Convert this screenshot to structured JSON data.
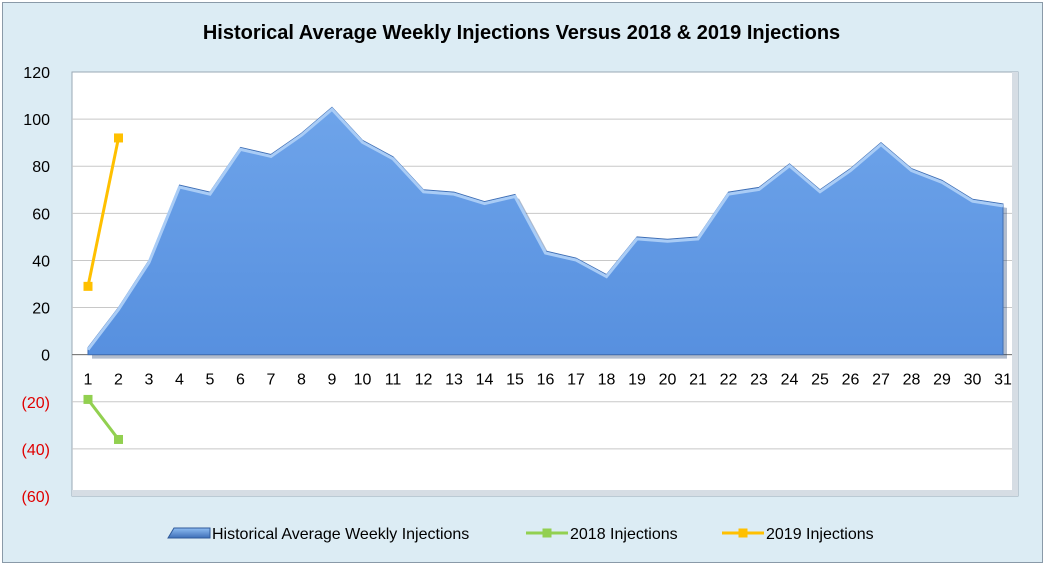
{
  "chart_data": {
    "type": "area",
    "title": "Historical Average Weekly Injections Versus 2018 & 2019 Injections",
    "xlabel": "",
    "ylabel": "",
    "x": [
      1,
      2,
      3,
      4,
      5,
      6,
      7,
      8,
      9,
      10,
      11,
      12,
      13,
      14,
      15,
      16,
      17,
      18,
      19,
      20,
      21,
      22,
      23,
      24,
      25,
      26,
      27,
      28,
      29,
      30,
      31
    ],
    "ylim": [
      -60,
      120
    ],
    "yticks": [
      120,
      100,
      80,
      60,
      40,
      20,
      0,
      -20,
      -40,
      -60
    ],
    "ytick_labels": [
      "120",
      "100",
      "80",
      "60",
      "40",
      "20",
      "0",
      "(20)",
      "(40)",
      "(60)"
    ],
    "negative_tick_color": "#e00000",
    "grid": true,
    "legend_position": "bottom",
    "series": [
      {
        "name": "Historical Average Weekly Injections",
        "kind": "area",
        "color": "#5b95e0",
        "x": [
          1,
          2,
          3,
          4,
          5,
          6,
          7,
          8,
          9,
          10,
          11,
          12,
          13,
          14,
          15,
          16,
          17,
          18,
          19,
          20,
          21,
          22,
          23,
          24,
          25,
          26,
          27,
          28,
          29,
          30,
          31
        ],
        "values": [
          3,
          20,
          40,
          72,
          69,
          88,
          85,
          94,
          105,
          91,
          84,
          70,
          69,
          65,
          68,
          44,
          41,
          34,
          50,
          49,
          50,
          69,
          71,
          81,
          70,
          79,
          90,
          79,
          74,
          66,
          64
        ]
      },
      {
        "name": "2018 Injections",
        "kind": "line",
        "color": "#92d050",
        "x": [
          1,
          2
        ],
        "values": [
          -19,
          -36
        ]
      },
      {
        "name": "2019 Injections",
        "kind": "line",
        "color": "#ffc000",
        "x": [
          1,
          2
        ],
        "values": [
          29,
          92
        ]
      }
    ]
  }
}
